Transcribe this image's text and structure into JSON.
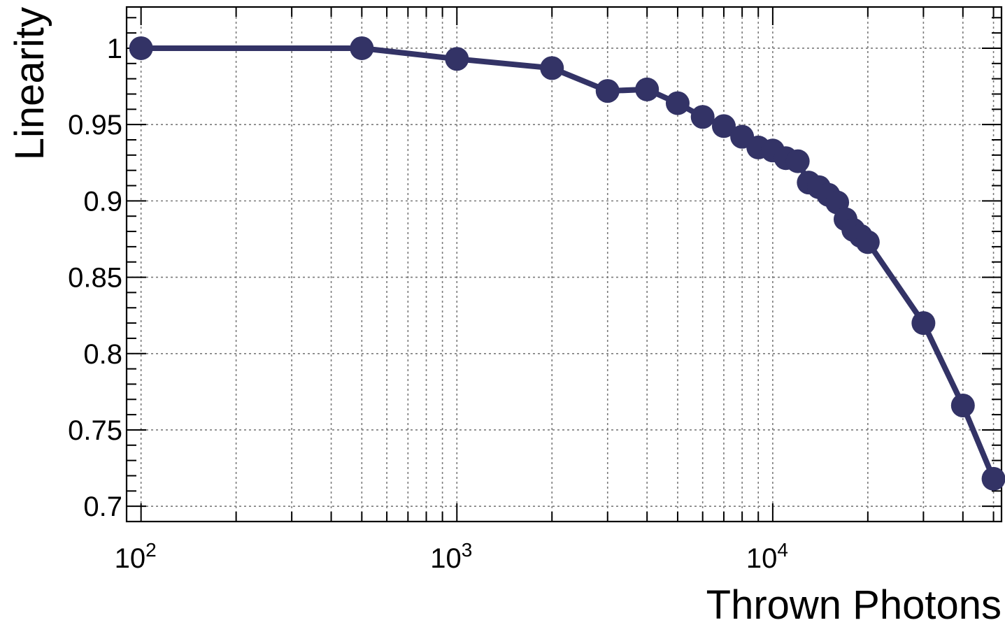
{
  "chart_data": {
    "type": "line",
    "xlabel": "Thrown Photons",
    "ylabel": "Linearity",
    "xscale": "log",
    "xlim": [
      90,
      53000
    ],
    "ylim": [
      0.69,
      1.027
    ],
    "yticks": [
      0.7,
      0.75,
      0.8,
      0.85,
      0.9,
      0.95,
      1
    ],
    "ytick_labels": [
      "0.7",
      "0.75",
      "0.8",
      "0.85",
      "0.9",
      "0.95",
      "1"
    ],
    "xticks_major": [
      {
        "value": 100,
        "base": "10",
        "exp": "2"
      },
      {
        "value": 1000,
        "base": "10",
        "exp": "3"
      },
      {
        "value": 10000,
        "base": "10",
        "exp": "4"
      }
    ],
    "grid": true,
    "series": [
      {
        "color": "#333366",
        "x": [
          100,
          500,
          1000,
          2000,
          3000,
          4000,
          5000,
          6000,
          7000,
          8000,
          9000,
          10000,
          11000,
          12000,
          13000,
          14000,
          15000,
          16000,
          17000,
          18000,
          19000,
          20000,
          30000,
          40000,
          50000
        ],
        "y": [
          1.0,
          1.0,
          0.993,
          0.987,
          0.972,
          0.973,
          0.964,
          0.955,
          0.949,
          0.942,
          0.935,
          0.933,
          0.928,
          0.926,
          0.912,
          0.909,
          0.904,
          0.899,
          0.888,
          0.881,
          0.877,
          0.873,
          0.82,
          0.766,
          0.718
        ]
      }
    ]
  }
}
